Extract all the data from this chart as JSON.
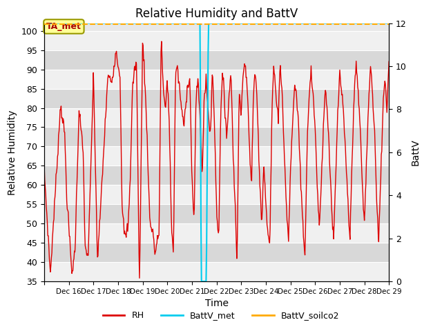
{
  "title": "Relative Humidity and BattV",
  "ylabel_left": "Relative Humidity",
  "ylabel_right": "BattV",
  "xlabel": "Time",
  "bg_color": "#ffffff",
  "plot_bg_color": "#e8e8e8",
  "stripe_light": "#f0f0f0",
  "stripe_dark": "#d8d8d8",
  "grid_color": "#ffffff",
  "rh_color": "#dd0000",
  "battv_met_color": "#00ccee",
  "battv_soilco2_color": "#ffaa00",
  "ylim_left": [
    35,
    102
  ],
  "ylim_right": [
    0,
    12
  ],
  "yticks_left": [
    35,
    40,
    45,
    50,
    55,
    60,
    65,
    70,
    75,
    80,
    85,
    90,
    95,
    100
  ],
  "yticks_right": [
    0,
    2,
    4,
    6,
    8,
    10,
    12
  ],
  "annotation_text": "TA_met",
  "annotation_color": "#aa0000",
  "annotation_bg": "#ffff99",
  "annotation_border": "#999900",
  "tick_labels": [
    "Dec 16",
    "Dec 17",
    "Dec 18",
    "Dec 19",
    "Dec 20",
    "Dec 21",
    "Dec 22",
    "Dec 23",
    "Dec 24",
    "Dec 25",
    "Dec 26",
    "Dec 27",
    "Dec 28",
    "Dec 29"
  ],
  "waypoints_rh": [
    [
      0,
      64
    ],
    [
      6,
      37
    ],
    [
      16,
      81
    ],
    [
      20,
      73
    ],
    [
      22,
      57
    ],
    [
      27,
      37
    ],
    [
      30,
      43
    ],
    [
      34,
      80
    ],
    [
      38,
      68
    ],
    [
      40,
      43
    ],
    [
      43,
      42
    ],
    [
      48,
      88
    ],
    [
      52,
      40
    ],
    [
      58,
      69
    ],
    [
      62,
      88
    ],
    [
      66,
      87
    ],
    [
      70,
      95
    ],
    [
      74,
      88
    ],
    [
      76,
      53
    ],
    [
      79,
      46
    ],
    [
      82,
      50
    ],
    [
      84,
      63
    ],
    [
      86,
      85
    ],
    [
      88,
      90
    ],
    [
      90,
      92
    ],
    [
      92,
      49
    ],
    [
      93,
      35
    ],
    [
      96,
      99
    ],
    [
      100,
      75
    ],
    [
      103,
      50
    ],
    [
      106,
      48
    ],
    [
      108,
      42
    ],
    [
      112,
      48
    ],
    [
      114,
      99
    ],
    [
      116,
      85
    ],
    [
      118,
      79
    ],
    [
      120,
      88
    ],
    [
      122,
      75
    ],
    [
      124,
      50
    ],
    [
      126,
      42
    ],
    [
      128,
      90
    ],
    [
      130,
      90
    ],
    [
      133,
      82
    ],
    [
      136,
      75
    ],
    [
      140,
      87
    ],
    [
      142,
      87
    ],
    [
      144,
      62
    ],
    [
      146,
      50
    ],
    [
      148,
      82
    ],
    [
      150,
      88
    ],
    [
      152,
      76
    ],
    [
      154,
      63
    ],
    [
      156,
      83
    ],
    [
      158,
      87
    ],
    [
      160,
      78
    ],
    [
      162,
      73
    ],
    [
      164,
      90
    ],
    [
      166,
      76
    ],
    [
      168,
      54
    ],
    [
      170,
      45
    ],
    [
      172,
      79
    ],
    [
      174,
      89
    ],
    [
      176,
      80
    ],
    [
      178,
      73
    ],
    [
      180,
      82
    ],
    [
      182,
      90
    ],
    [
      184,
      70
    ],
    [
      186,
      55
    ],
    [
      188,
      40
    ],
    [
      190,
      84
    ],
    [
      192,
      80
    ],
    [
      194,
      89
    ],
    [
      196,
      92
    ],
    [
      198,
      84
    ],
    [
      200,
      70
    ],
    [
      202,
      60
    ],
    [
      204,
      84
    ],
    [
      206,
      90
    ],
    [
      208,
      78
    ],
    [
      210,
      62
    ],
    [
      212,
      50
    ],
    [
      214,
      66
    ],
    [
      216,
      55
    ],
    [
      218,
      47
    ],
    [
      220,
      45
    ],
    [
      222,
      80
    ],
    [
      224,
      92
    ],
    [
      226,
      83
    ],
    [
      228,
      77
    ],
    [
      230,
      92
    ],
    [
      232,
      83
    ],
    [
      234,
      68
    ],
    [
      236,
      55
    ],
    [
      238,
      45
    ],
    [
      240,
      63
    ],
    [
      242,
      76
    ],
    [
      244,
      86
    ],
    [
      246,
      83
    ],
    [
      248,
      75
    ],
    [
      250,
      61
    ],
    [
      252,
      51
    ],
    [
      254,
      40
    ],
    [
      256,
      68
    ],
    [
      258,
      83
    ],
    [
      260,
      90
    ],
    [
      262,
      83
    ],
    [
      264,
      75
    ],
    [
      266,
      61
    ],
    [
      268,
      49
    ],
    [
      270,
      60
    ],
    [
      272,
      75
    ],
    [
      274,
      85
    ],
    [
      276,
      79
    ],
    [
      278,
      68
    ],
    [
      280,
      55
    ],
    [
      282,
      45
    ],
    [
      284,
      61
    ],
    [
      286,
      78
    ],
    [
      288,
      89
    ],
    [
      290,
      84
    ],
    [
      292,
      77
    ],
    [
      294,
      66
    ],
    [
      296,
      56
    ],
    [
      298,
      45
    ],
    [
      300,
      67
    ],
    [
      302,
      83
    ],
    [
      304,
      91
    ],
    [
      306,
      84
    ],
    [
      308,
      75
    ],
    [
      310,
      60
    ],
    [
      312,
      50
    ],
    [
      314,
      65
    ],
    [
      316,
      80
    ],
    [
      318,
      92
    ],
    [
      320,
      83
    ],
    [
      322,
      74
    ],
    [
      324,
      56
    ],
    [
      326,
      45
    ],
    [
      328,
      62
    ],
    [
      330,
      79
    ],
    [
      332,
      88
    ],
    [
      334,
      80
    ],
    [
      336,
      92
    ]
  ]
}
